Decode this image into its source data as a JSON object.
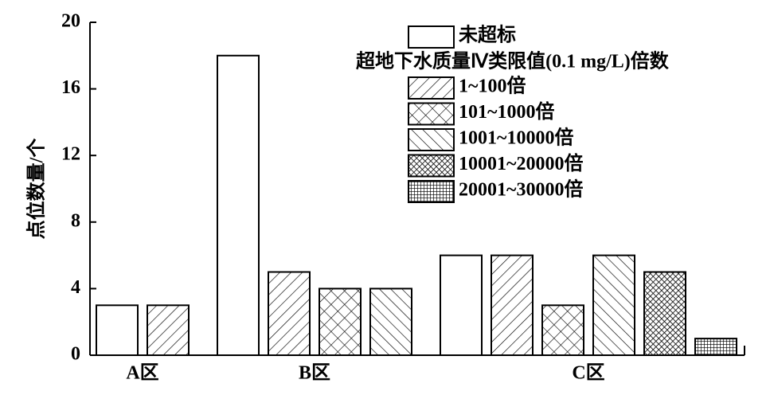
{
  "chart_data": {
    "type": "bar",
    "y_label": "点位数量/个",
    "legend_title": "超地下水质量Ⅳ类限值(0.1 mg/L)倍数",
    "categories": [
      "A区",
      "B区",
      "C区"
    ],
    "ylim": [
      0,
      20
    ],
    "yticks": [
      0,
      4,
      8,
      12,
      16,
      20
    ],
    "series": [
      {
        "name": "未超标",
        "color": "#000000",
        "pattern": "none",
        "values": [
          3,
          18,
          6
        ]
      },
      {
        "name": "1~100倍",
        "color": "#000000",
        "pattern": "diagonal",
        "values": [
          3,
          5,
          6
        ]
      },
      {
        "name": "101~1000倍",
        "color": "#000000",
        "pattern": "crosshatch",
        "values": [
          null,
          4,
          3
        ]
      },
      {
        "name": "1001~10000倍",
        "color": "#000000",
        "pattern": "backdiagonal",
        "values": [
          null,
          4,
          6
        ]
      },
      {
        "name": "10001~20000倍",
        "color": "#000000",
        "pattern": "dense-crosshatch",
        "values": [
          null,
          null,
          5
        ]
      },
      {
        "name": "20001~30000倍",
        "color": "#000000",
        "pattern": "grid",
        "values": [
          null,
          null,
          1
        ]
      }
    ]
  }
}
